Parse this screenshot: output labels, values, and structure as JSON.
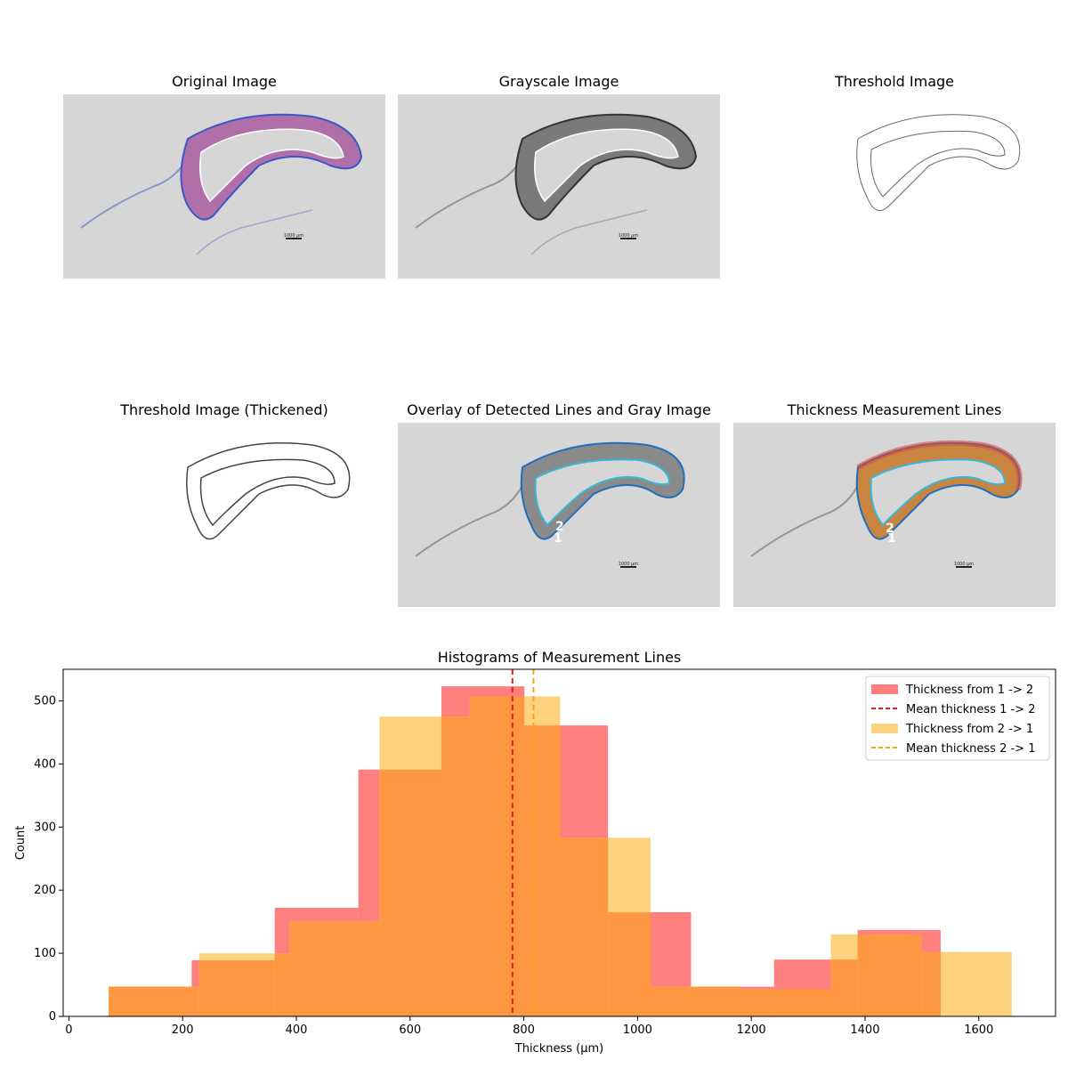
{
  "panels": [
    {
      "id": "original",
      "title": "Original Image",
      "scale_label": "1000 µm"
    },
    {
      "id": "grayscale",
      "title": "Grayscale Image",
      "scale_label": "1000 µm"
    },
    {
      "id": "threshold",
      "title": "Threshold Image"
    },
    {
      "id": "threshold-thick",
      "title": "Threshold Image (Thickened)"
    },
    {
      "id": "overlay",
      "title": "Overlay of Detected Lines and Gray Image",
      "scale_label": "1000 µm",
      "markers": [
        "2",
        "1"
      ]
    },
    {
      "id": "measure",
      "title": "Thickness Measurement Lines",
      "scale_label": "1000 µm",
      "markers": [
        "2",
        "1"
      ]
    }
  ],
  "colors": {
    "series1": "#ff7f7f",
    "series2": "#fdd27f",
    "overlap": "#fe9742",
    "mean1": "#e41a1c",
    "mean2": "#ff9f1a",
    "outer_contour": "#1f6fbf",
    "inner_contour": "#38b6d8"
  },
  "chart_data": {
    "type": "bar",
    "title": "Histograms of Measurement Lines",
    "xlabel": "Thickness (µm)",
    "ylabel": "Count",
    "xlim": [
      -10,
      1735
    ],
    "ylim": [
      0,
      550
    ],
    "xticks": [
      0,
      200,
      400,
      600,
      800,
      1000,
      1200,
      1400,
      1600
    ],
    "yticks": [
      0,
      100,
      200,
      300,
      400,
      500
    ],
    "legend_position": "top-right",
    "series": [
      {
        "name": "Thickness from 1 -> 2",
        "edges": [
          70,
          216,
          362,
          509,
          655,
          801,
          948,
          1094,
          1240,
          1387,
          1533
        ],
        "counts": [
          47,
          89,
          172,
          391,
          523,
          461,
          165,
          47,
          90,
          137
        ]
      },
      {
        "name": "Thickness from 2 -> 1",
        "edges": [
          70,
          229,
          388,
          546,
          705,
          864,
          1023,
          1181,
          1340,
          1499,
          1658
        ],
        "counts": [
          47,
          100,
          151,
          475,
          507,
          283,
          47,
          43,
          130,
          102
        ]
      }
    ],
    "means": [
      {
        "name": "Mean thickness 1 -> 2",
        "value": 780
      },
      {
        "name": "Mean thickness 2 -> 1",
        "value": 817
      }
    ]
  }
}
